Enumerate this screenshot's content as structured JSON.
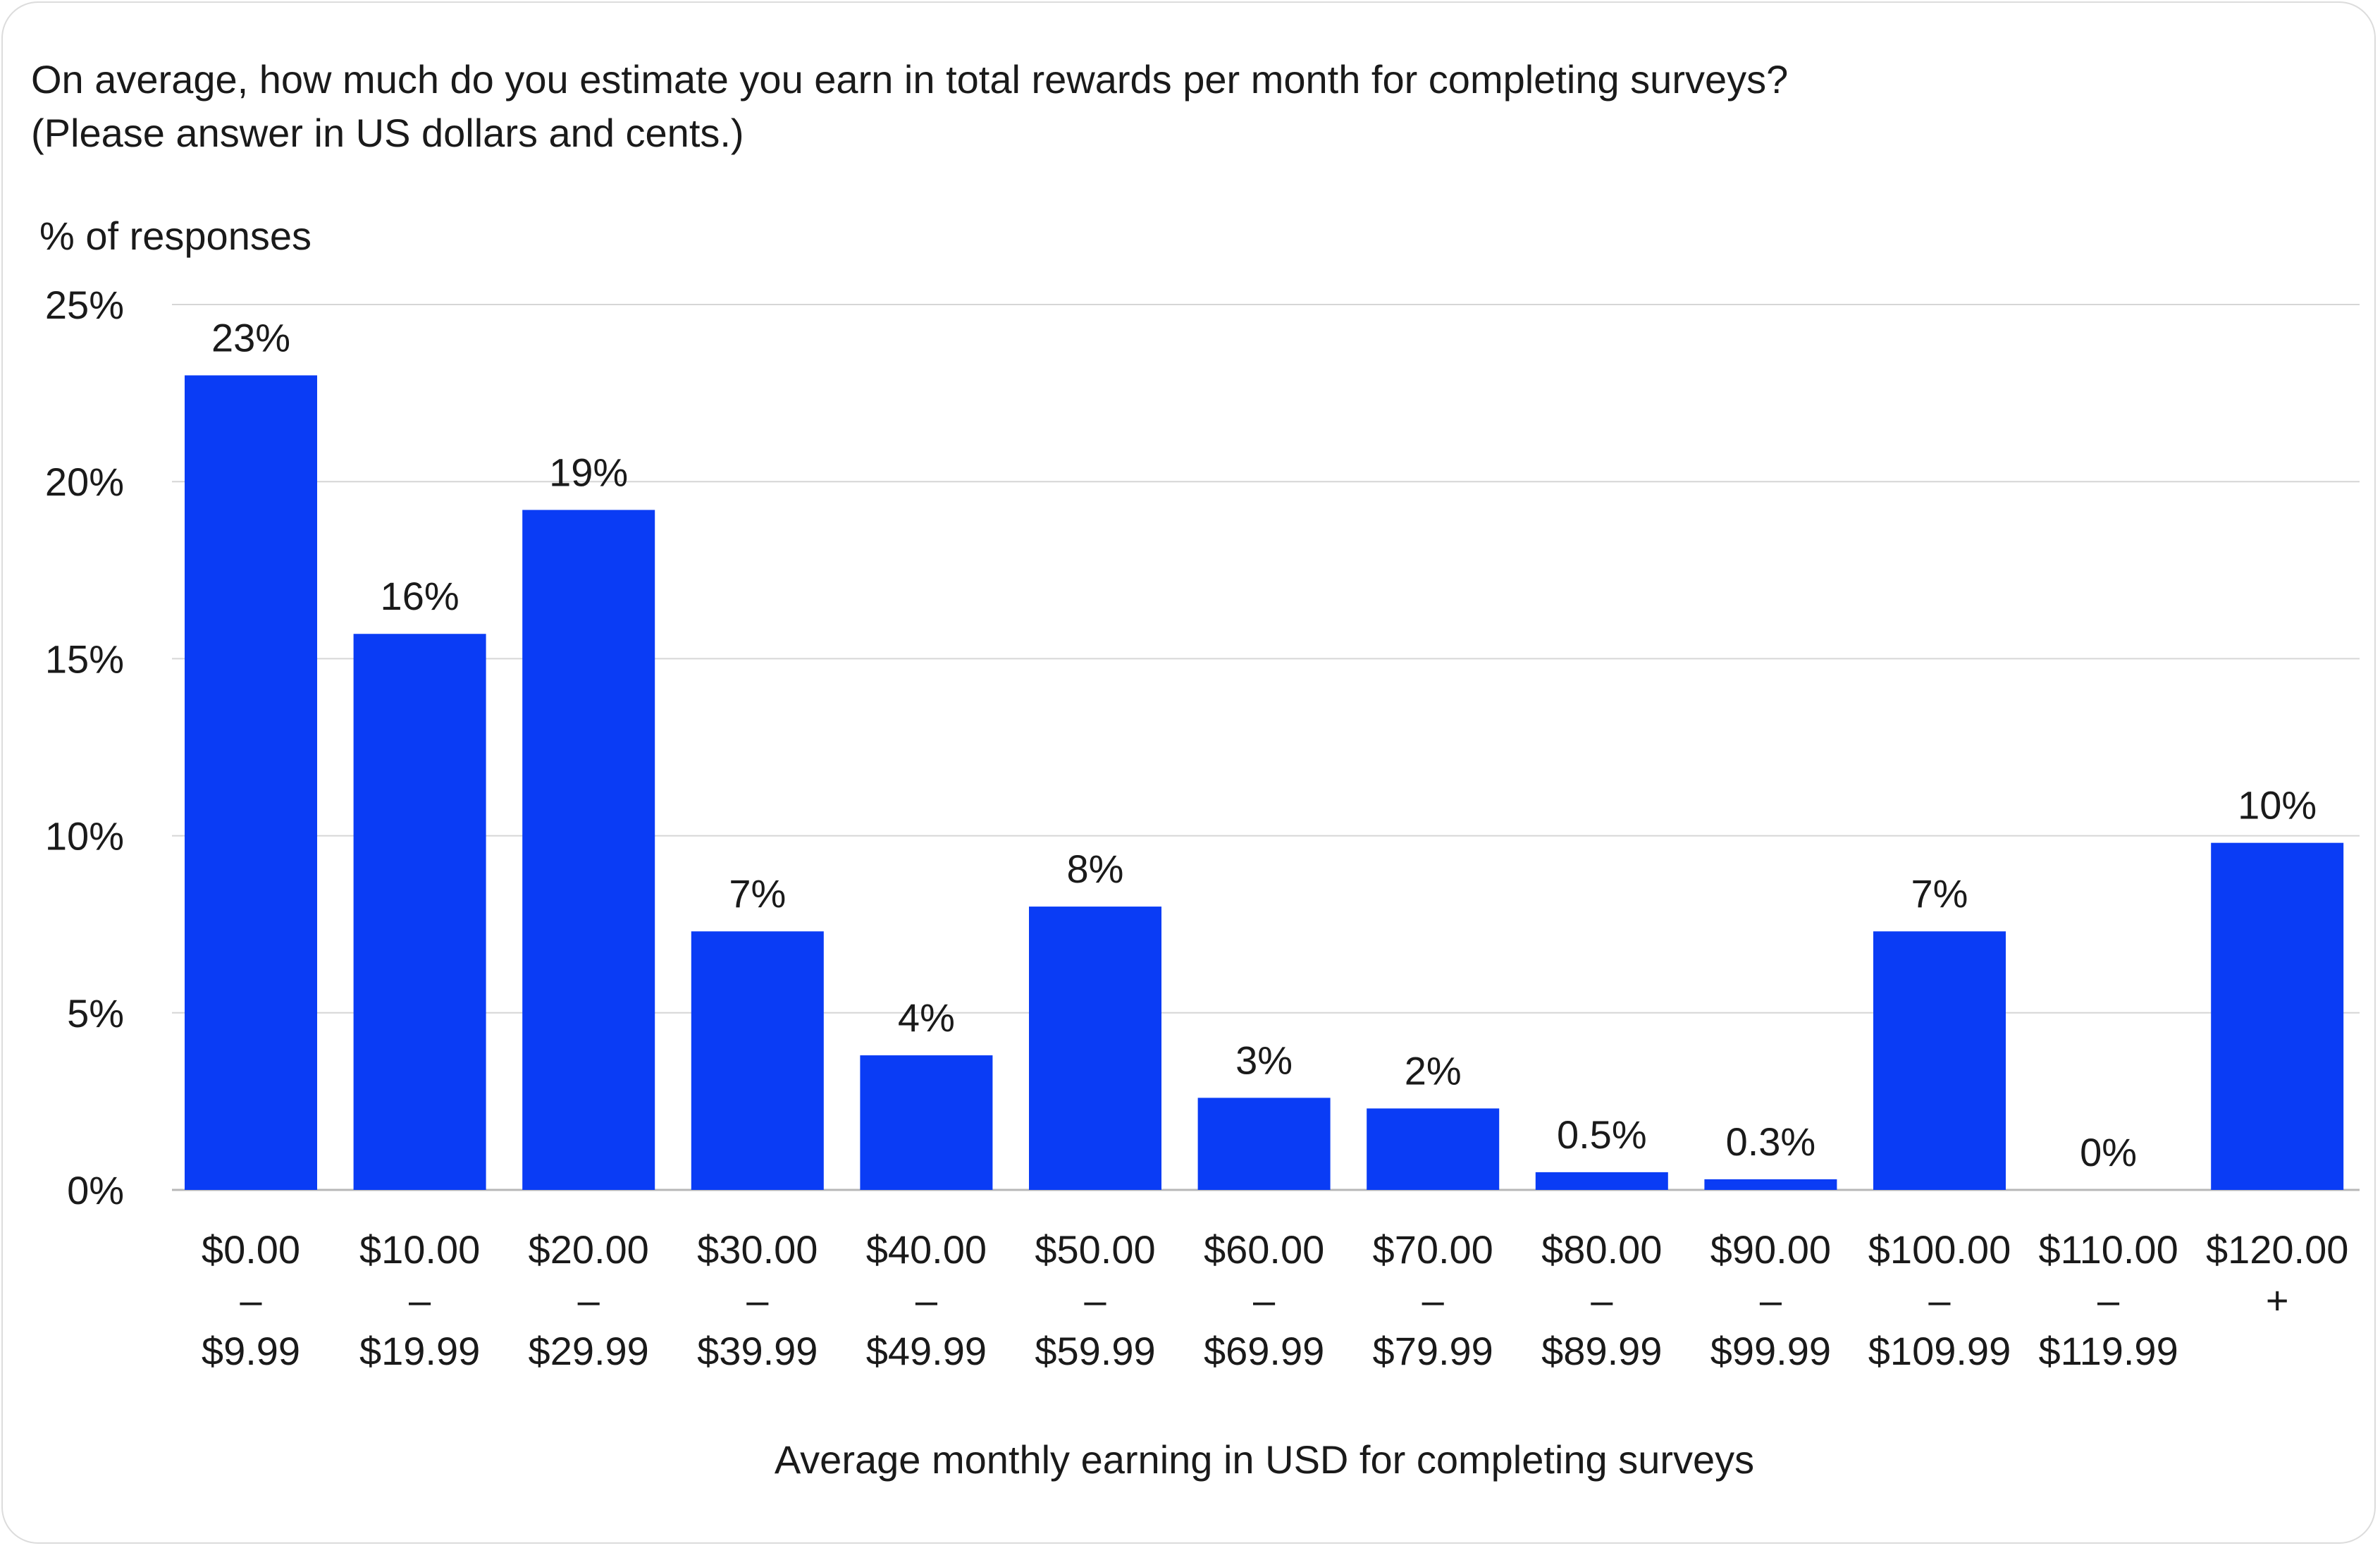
{
  "chart_data": {
    "type": "bar",
    "title": "On average, how much do you estimate you earn in total rewards per month for completing surveys?",
    "subtitle": "(Please answer in US dollars and cents.)",
    "ylabel": "% of responses",
    "xlabel": "Average monthly earning in USD for completing surveys",
    "ylim": [
      0,
      25
    ],
    "yticks": [
      "0%",
      "5%",
      "10%",
      "15%",
      "20%",
      "25%"
    ],
    "grid": true,
    "color": "#0a3cf5",
    "categories": [
      [
        "$0.00",
        "–",
        "$9.99"
      ],
      [
        "$10.00",
        "–",
        "$19.99"
      ],
      [
        "$20.00",
        "–",
        "$29.99"
      ],
      [
        "$30.00",
        "–",
        "$39.99"
      ],
      [
        "$40.00",
        "–",
        "$49.99"
      ],
      [
        "$50.00",
        "–",
        "$59.99"
      ],
      [
        "$60.00",
        "–",
        "$69.99"
      ],
      [
        "$70.00",
        "–",
        "$79.99"
      ],
      [
        "$80.00",
        "–",
        "$89.99"
      ],
      [
        "$90.00",
        "–",
        "$99.99"
      ],
      [
        "$100.00",
        "–",
        "$109.99"
      ],
      [
        "$110.00",
        "–",
        "$119.99"
      ],
      [
        "$120.00",
        "+"
      ]
    ],
    "values": [
      23,
      15.7,
      19.2,
      7.3,
      3.8,
      8.0,
      2.6,
      2.3,
      0.5,
      0.3,
      7.3,
      0,
      9.8
    ],
    "labels": [
      "23%",
      "16%",
      "19%",
      "7%",
      "4%",
      "8%",
      "3%",
      "2%",
      "0.5%",
      "0.3%",
      "7%",
      "0%",
      "10%"
    ]
  }
}
